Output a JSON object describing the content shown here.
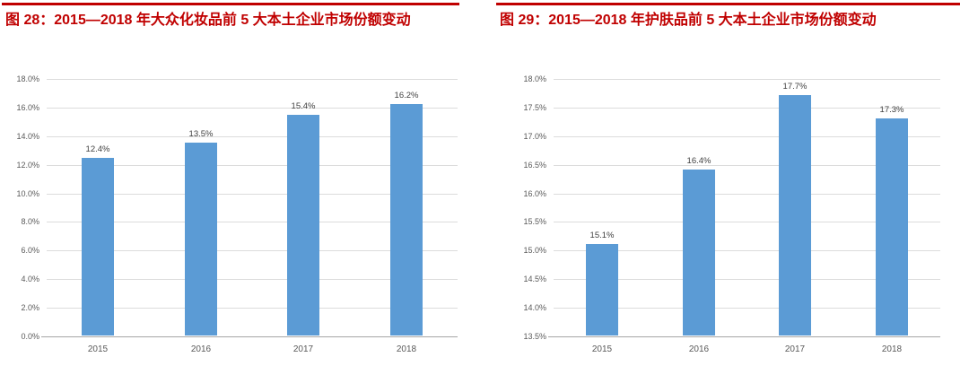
{
  "figures": [
    {
      "title": "图 28：2015—2018 年大众化妆品前 5 大本土企业市场份额变动"
    },
    {
      "title": "图 29：2015—2018 年护肤品前 5 大本土企业市场份额变动"
    }
  ],
  "colors": {
    "title_red": "#c00000",
    "rule_red": "#c00000",
    "bar_blue": "#5b9bd5",
    "gridline": "#dcdcdc",
    "axis_line": "#a6a6a6",
    "tick_label": "#595959",
    "data_label": "#3f3f3f"
  },
  "chart_data": [
    {
      "type": "bar",
      "title": "图 28：2015—2018 年大众化妆品前 5 大本土企业市场份额变动",
      "categories": [
        "2015",
        "2016",
        "2017",
        "2018"
      ],
      "values": [
        12.4,
        13.5,
        15.4,
        16.2
      ],
      "value_labels": [
        "12.4%",
        "13.5%",
        "15.4%",
        "16.2%"
      ],
      "xlabel": "",
      "ylabel": "",
      "ylim": [
        0,
        18
      ],
      "ytick_interval": 2,
      "yticks": [
        "0.0%",
        "2.0%",
        "4.0%",
        "6.0%",
        "8.0%",
        "10.0%",
        "12.0%",
        "14.0%",
        "16.0%",
        "18.0%"
      ],
      "grid": true,
      "legend": null,
      "bar_color": "#5b9bd5"
    },
    {
      "type": "bar",
      "title": "图 29：2015—2018 年护肤品前 5 大本土企业市场份额变动",
      "categories": [
        "2015",
        "2016",
        "2017",
        "2018"
      ],
      "values": [
        15.1,
        16.4,
        17.7,
        17.3
      ],
      "value_labels": [
        "15.1%",
        "16.4%",
        "17.7%",
        "17.3%"
      ],
      "xlabel": "",
      "ylabel": "",
      "ylim": [
        13.5,
        18
      ],
      "ytick_interval": 0.5,
      "yticks": [
        "13.5%",
        "14.0%",
        "14.5%",
        "15.0%",
        "15.5%",
        "16.0%",
        "16.5%",
        "17.0%",
        "17.5%",
        "18.0%"
      ],
      "grid": true,
      "legend": null,
      "bar_color": "#5b9bd5"
    }
  ]
}
